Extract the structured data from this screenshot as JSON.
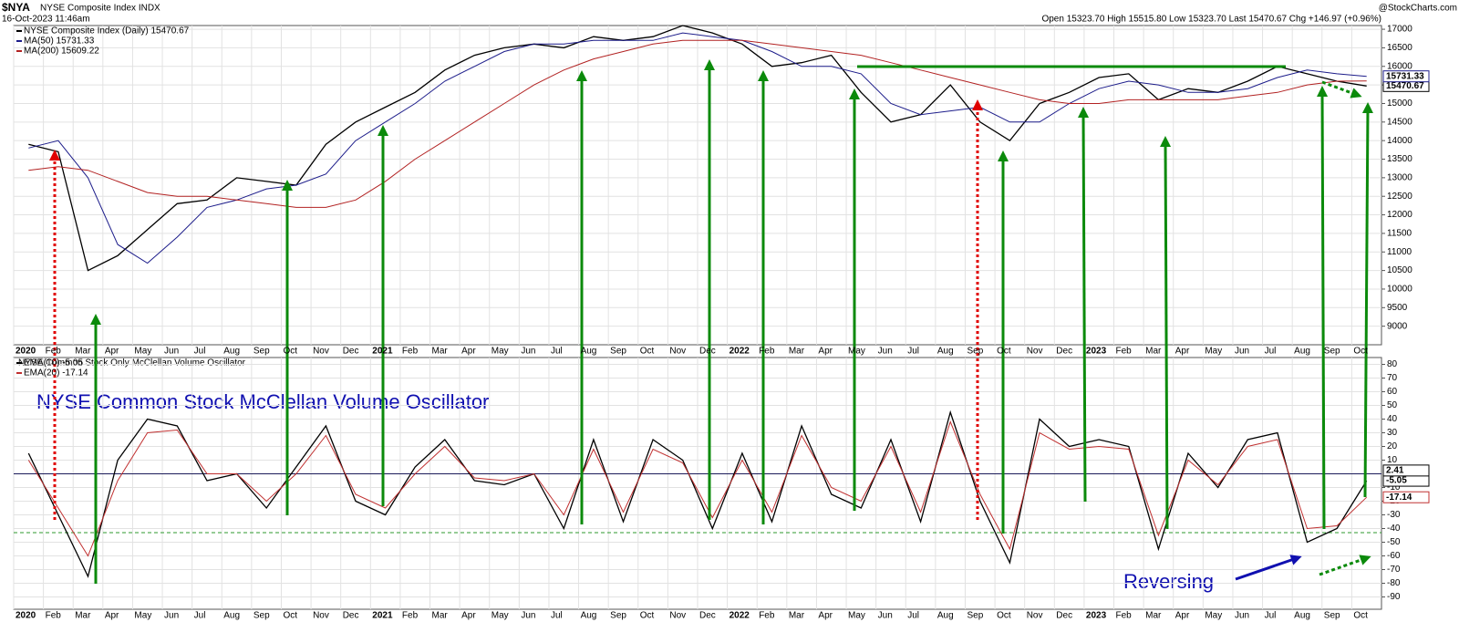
{
  "chart_data": [
    {
      "type": "line",
      "title": "$NYA",
      "subtitle": "NYSE Composite Index INDX",
      "date": "16-Oct-2023 11:46am",
      "quote": "Open 15323.70 High 15515.80 Low 15323.70 Last 15470.67 Chg +146.97 (+0.96%)",
      "credit": "@StockCharts.com",
      "categories": [
        "2020",
        "Feb",
        "Mar",
        "Apr",
        "May",
        "Jun",
        "Jul",
        "Aug",
        "Sep",
        "Oct",
        "Nov",
        "Dec",
        "2021",
        "Feb",
        "Mar",
        "Apr",
        "May",
        "Jun",
        "Jul",
        "Aug",
        "Sep",
        "Oct",
        "Nov",
        "Dec",
        "2022",
        "Feb",
        "Mar",
        "Apr",
        "May",
        "Jun",
        "Jul",
        "Aug",
        "Sep",
        "Oct",
        "Nov",
        "Dec",
        "2023",
        "Feb",
        "Mar",
        "Apr",
        "May",
        "Jun",
        "Jul",
        "Aug",
        "Sep",
        "Oct"
      ],
      "ylim": [
        8500,
        17100
      ],
      "yticks": [
        9000,
        9500,
        10000,
        10500,
        11000,
        11500,
        12000,
        12500,
        13000,
        13500,
        14000,
        14500,
        15000,
        15500,
        16000,
        16500,
        17000
      ],
      "grid": true,
      "series": [
        {
          "name": "NYSE Composite Index (Daily) 15470.67",
          "color": "#000000",
          "tag": true,
          "values": [
            13900,
            13700,
            10500,
            10900,
            11600,
            12300,
            12400,
            13000,
            12900,
            12800,
            13900,
            14500,
            14900,
            15300,
            15900,
            16300,
            16500,
            16600,
            16500,
            16800,
            16700,
            16800,
            17100,
            16900,
            16600,
            16000,
            16100,
            16300,
            15300,
            14500,
            14700,
            15500,
            14500,
            14000,
            15000,
            15300,
            15700,
            15800,
            15100,
            15400,
            15300,
            15600,
            16000,
            15800,
            15600,
            15470.67
          ]
        },
        {
          "name": "MA(50) 15731.33",
          "color": "#1c1c8a",
          "tag": true,
          "values": [
            13800,
            14000,
            13000,
            11200,
            10700,
            11400,
            12200,
            12400,
            12700,
            12800,
            13100,
            14000,
            14500,
            15000,
            15600,
            16000,
            16400,
            16600,
            16600,
            16700,
            16700,
            16700,
            16900,
            16800,
            16700,
            16400,
            16000,
            16000,
            15800,
            15000,
            14700,
            14800,
            14900,
            14500,
            14500,
            15000,
            15400,
            15600,
            15500,
            15300,
            15300,
            15400,
            15700,
            15900,
            15800,
            15731.33
          ]
        },
        {
          "name": "MA(200) 15609.22",
          "color": "#b22222",
          "tag": false,
          "values": [
            13200,
            13300,
            13200,
            12900,
            12600,
            12500,
            12500,
            12400,
            12300,
            12200,
            12200,
            12400,
            12900,
            13500,
            14000,
            14500,
            15000,
            15500,
            15900,
            16200,
            16400,
            16600,
            16700,
            16700,
            16700,
            16600,
            16500,
            16400,
            16300,
            16100,
            15900,
            15700,
            15500,
            15300,
            15100,
            15000,
            15000,
            15100,
            15100,
            15100,
            15100,
            15200,
            15300,
            15500,
            15600,
            15609.22
          ]
        }
      ]
    },
    {
      "type": "line",
      "title": "NYSE Common Stock Only McClellan Volume Oscillator",
      "annotations": [
        "NYSE Common Stock McClellan Volume Oscillator",
        "Reversing"
      ],
      "categories": [
        "2020",
        "Feb",
        "Mar",
        "Apr",
        "May",
        "Jun",
        "Jul",
        "Aug",
        "Sep",
        "Oct",
        "Nov",
        "Dec",
        "2021",
        "Feb",
        "Mar",
        "Apr",
        "May",
        "Jun",
        "Jul",
        "Aug",
        "Sep",
        "Oct",
        "Nov",
        "Dec",
        "2022",
        "Feb",
        "Mar",
        "Apr",
        "May",
        "Jun",
        "Jul",
        "Aug",
        "Sep",
        "Oct",
        "Nov",
        "Dec",
        "2023",
        "Feb",
        "Mar",
        "Apr",
        "May",
        "Jun",
        "Jul",
        "Aug",
        "Sep",
        "Oct"
      ],
      "ylim": [
        -99,
        85
      ],
      "yticks": [
        80,
        70,
        60,
        50,
        40,
        30,
        20,
        10,
        -10,
        -20,
        -30,
        -40,
        -50,
        -60,
        -70,
        -80,
        -90
      ],
      "grid": true,
      "hlines": [
        {
          "value": 0,
          "color": "#1c1c5a"
        },
        {
          "value": -43,
          "color": "#2e9a2e"
        }
      ],
      "series": [
        {
          "name": "EMA(10) -5.05",
          "color": "#000000",
          "tag": true,
          "values": [
            15,
            -30,
            -75,
            10,
            40,
            35,
            -5,
            0,
            -25,
            5,
            35,
            -20,
            -30,
            5,
            25,
            -5,
            -8,
            0,
            -40,
            25,
            -35,
            25,
            10,
            -40,
            15,
            -35,
            35,
            -15,
            -25,
            25,
            -35,
            45,
            -20,
            -65,
            40,
            20,
            25,
            20,
            -55,
            15,
            -10,
            25,
            30,
            -50,
            -40,
            -5.05
          ]
        },
        {
          "name": "EMA(20) -17.14",
          "color": "#c03030",
          "tag": true,
          "values": [
            10,
            -25,
            -60,
            -5,
            30,
            32,
            0,
            0,
            -20,
            0,
            28,
            -15,
            -25,
            0,
            20,
            -3,
            -5,
            0,
            -30,
            18,
            -28,
            18,
            8,
            -32,
            10,
            -28,
            28,
            -10,
            -20,
            20,
            -28,
            38,
            -15,
            -55,
            30,
            18,
            20,
            18,
            -45,
            10,
            -8,
            20,
            25,
            -40,
            -38,
            -17.14
          ]
        },
        {
          "name": "",
          "color": "#000000",
          "tag": true,
          "legend": false,
          "values": [
            null,
            null,
            null,
            null,
            null,
            null,
            null,
            null,
            null,
            null,
            null,
            null,
            null,
            null,
            null,
            null,
            null,
            null,
            null,
            null,
            null,
            null,
            null,
            null,
            null,
            null,
            null,
            null,
            null,
            null,
            null,
            null,
            null,
            null,
            null,
            null,
            null,
            null,
            null,
            null,
            null,
            null,
            null,
            null,
            null,
            2.41
          ]
        }
      ]
    }
  ]
}
